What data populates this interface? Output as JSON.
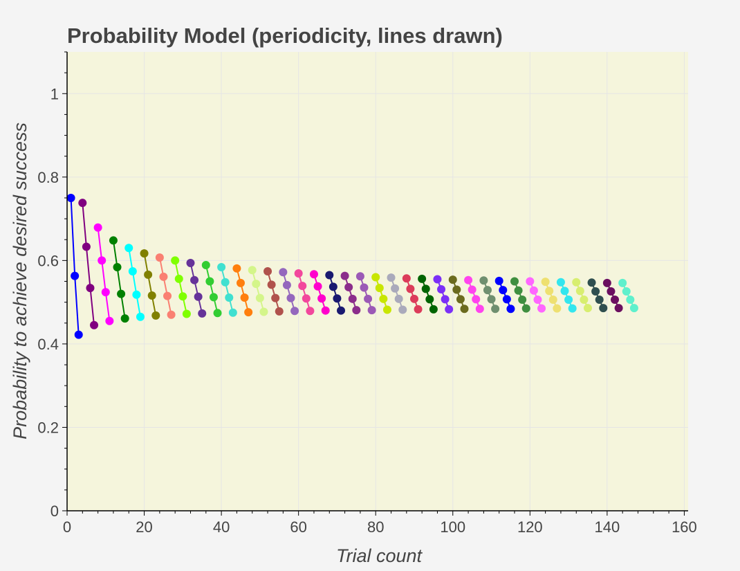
{
  "chart_data": {
    "type": "line",
    "title": "Probability Model (periodicity, lines drawn)",
    "xlabel": "Trial count",
    "ylabel": "Probability to achieve desired success",
    "xlim": [
      0,
      161
    ],
    "ylim": [
      0,
      1.1
    ],
    "x_ticks": [
      0,
      20,
      40,
      60,
      80,
      100,
      120,
      140,
      160
    ],
    "x_tick_labels": [
      "0",
      "20",
      "40",
      "60",
      "80",
      "100",
      "120",
      "140",
      "160"
    ],
    "y_ticks": [
      0,
      0.2,
      0.4,
      0.6,
      0.8,
      1
    ],
    "y_tick_labels": [
      "0",
      "0.2",
      "0.4",
      "0.6",
      "0.8",
      "1"
    ],
    "grid": true,
    "plot_background": "#f5f5dc",
    "page_background": "#f4f4f4",
    "series": [
      {
        "x": [
          1,
          2,
          3
        ],
        "values": [
          0.75,
          0.563,
          0.422
        ],
        "color": "#0000ff"
      },
      {
        "x": [
          4,
          5,
          6,
          7
        ],
        "values": [
          0.738,
          0.633,
          0.534,
          0.445
        ],
        "color": "#800080"
      },
      {
        "x": [
          8,
          9,
          10,
          11
        ],
        "values": [
          0.679,
          0.6,
          0.524,
          0.455
        ],
        "color": "#ff00ff"
      },
      {
        "x": [
          12,
          13,
          14,
          15
        ],
        "values": [
          0.648,
          0.584,
          0.52,
          0.461
        ],
        "color": "#008000"
      },
      {
        "x": [
          16,
          17,
          18,
          19
        ],
        "values": [
          0.63,
          0.574,
          0.518,
          0.465
        ],
        "color": "#00ffff"
      },
      {
        "x": [
          20,
          21,
          22,
          23
        ],
        "values": [
          0.617,
          0.566,
          0.516,
          0.468
        ],
        "color": "#808000"
      },
      {
        "x": [
          24,
          25,
          26,
          27
        ],
        "values": [
          0.607,
          0.561,
          0.515,
          0.47
        ],
        "color": "#fa8072"
      },
      {
        "x": [
          28,
          29,
          30,
          31
        ],
        "values": [
          0.6,
          0.556,
          0.514,
          0.472
        ],
        "color": "#7fff00"
      },
      {
        "x": [
          32,
          33,
          34,
          35
        ],
        "values": [
          0.594,
          0.553,
          0.513,
          0.473
        ],
        "color": "#663399"
      },
      {
        "x": [
          36,
          37,
          38,
          39
        ],
        "values": [
          0.589,
          0.55,
          0.512,
          0.474
        ],
        "color": "#32cd32"
      },
      {
        "x": [
          40,
          41,
          42,
          43
        ],
        "values": [
          0.584,
          0.548,
          0.511,
          0.475
        ],
        "color": "#40e0d0"
      },
      {
        "x": [
          44,
          45,
          46,
          47
        ],
        "values": [
          0.581,
          0.546,
          0.511,
          0.476
        ],
        "color": "#ff7f0e"
      },
      {
        "x": [
          48,
          49,
          50,
          51
        ],
        "values": [
          0.577,
          0.544,
          0.51,
          0.477
        ],
        "color": "#d4f58a"
      },
      {
        "x": [
          52,
          53,
          54,
          55
        ],
        "values": [
          0.574,
          0.542,
          0.51,
          0.478
        ],
        "color": "#b0524c"
      },
      {
        "x": [
          56,
          57,
          58,
          59
        ],
        "values": [
          0.572,
          0.541,
          0.51,
          0.479
        ],
        "color": "#9467bd"
      },
      {
        "x": [
          60,
          61,
          62,
          63
        ],
        "values": [
          0.569,
          0.539,
          0.509,
          0.479
        ],
        "color": "#f2479c"
      },
      {
        "x": [
          64,
          65,
          66,
          67
        ],
        "values": [
          0.567,
          0.538,
          0.509,
          0.48
        ],
        "color": "#ff00cc"
      },
      {
        "x": [
          68,
          69,
          70,
          71
        ],
        "values": [
          0.565,
          0.537,
          0.509,
          0.48
        ],
        "color": "#191970"
      },
      {
        "x": [
          72,
          73,
          74,
          75
        ],
        "values": [
          0.563,
          0.536,
          0.508,
          0.481
        ],
        "color": "#8b2d8b"
      },
      {
        "x": [
          76,
          77,
          78,
          79
        ],
        "values": [
          0.562,
          0.535,
          0.508,
          0.481
        ],
        "color": "#9b59b6"
      },
      {
        "x": [
          80,
          81,
          82,
          83
        ],
        "values": [
          0.56,
          0.534,
          0.508,
          0.482
        ],
        "color": "#c8e600"
      },
      {
        "x": [
          84,
          85,
          86,
          87
        ],
        "values": [
          0.559,
          0.533,
          0.508,
          0.482
        ],
        "color": "#aaaabb"
      },
      {
        "x": [
          88,
          89,
          90,
          91
        ],
        "values": [
          0.557,
          0.532,
          0.508,
          0.483
        ],
        "color": "#dc3c5a"
      },
      {
        "x": [
          92,
          93,
          94,
          95
        ],
        "values": [
          0.556,
          0.532,
          0.507,
          0.483
        ],
        "color": "#006400"
      },
      {
        "x": [
          96,
          97,
          98,
          99
        ],
        "values": [
          0.555,
          0.531,
          0.507,
          0.483
        ],
        "color": "#7b2ff7"
      },
      {
        "x": [
          100,
          101,
          102,
          103
        ],
        "values": [
          0.554,
          0.53,
          0.507,
          0.484
        ],
        "color": "#6b6b1e"
      },
      {
        "x": [
          104,
          105,
          106,
          107
        ],
        "values": [
          0.553,
          0.53,
          0.507,
          0.484
        ],
        "color": "#ff44ee"
      },
      {
        "x": [
          108,
          109,
          110,
          111
        ],
        "values": [
          0.552,
          0.529,
          0.507,
          0.484
        ],
        "color": "#6f8f6f"
      },
      {
        "x": [
          112,
          113,
          114,
          115
        ],
        "values": [
          0.551,
          0.529,
          0.507,
          0.484
        ],
        "color": "#0000ff"
      },
      {
        "x": [
          116,
          117,
          118,
          119
        ],
        "values": [
          0.55,
          0.528,
          0.506,
          0.485
        ],
        "color": "#3f8f3f"
      },
      {
        "x": [
          120,
          121,
          122,
          123
        ],
        "values": [
          0.55,
          0.528,
          0.506,
          0.485
        ],
        "color": "#ff66ff"
      },
      {
        "x": [
          124,
          125,
          126,
          127
        ],
        "values": [
          0.549,
          0.527,
          0.506,
          0.485
        ],
        "color": "#eee070"
      },
      {
        "x": [
          128,
          129,
          130,
          131
        ],
        "values": [
          0.548,
          0.527,
          0.506,
          0.485
        ],
        "color": "#33e6ee"
      },
      {
        "x": [
          132,
          133,
          134,
          135
        ],
        "values": [
          0.548,
          0.527,
          0.506,
          0.486
        ],
        "color": "#d8ee70"
      },
      {
        "x": [
          136,
          137,
          138,
          139
        ],
        "values": [
          0.547,
          0.526,
          0.506,
          0.486
        ],
        "color": "#2f4f4f"
      },
      {
        "x": [
          140,
          141,
          142,
          143
        ],
        "values": [
          0.546,
          0.526,
          0.506,
          0.486
        ],
        "color": "#6b0f5f"
      },
      {
        "x": [
          144,
          145,
          146,
          147
        ],
        "values": [
          0.546,
          0.526,
          0.506,
          0.486
        ],
        "color": "#5ff0cc"
      }
    ]
  }
}
